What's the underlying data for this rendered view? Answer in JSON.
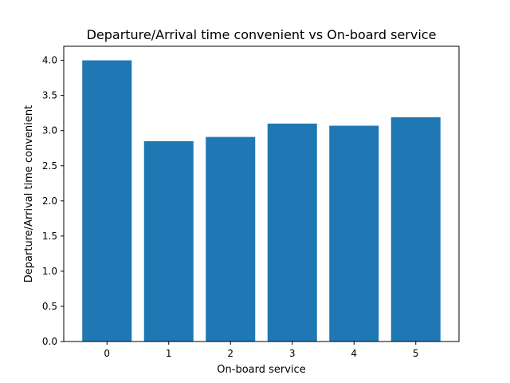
{
  "chart_data": {
    "type": "bar",
    "title": "Departure/Arrival time convenient vs On-board service",
    "xlabel": "On-board service",
    "ylabel": "Departure/Arrival time convenient",
    "categories": [
      "0",
      "1",
      "2",
      "3",
      "4",
      "5"
    ],
    "values": [
      4.0,
      2.85,
      2.91,
      3.1,
      3.07,
      3.19
    ],
    "ylim": [
      0,
      4.2
    ],
    "yticks": [
      "0.0",
      "0.5",
      "1.0",
      "1.5",
      "2.0",
      "2.5",
      "3.0",
      "3.5",
      "4.0"
    ],
    "grid": false,
    "bar_color": "#1f77b4"
  }
}
